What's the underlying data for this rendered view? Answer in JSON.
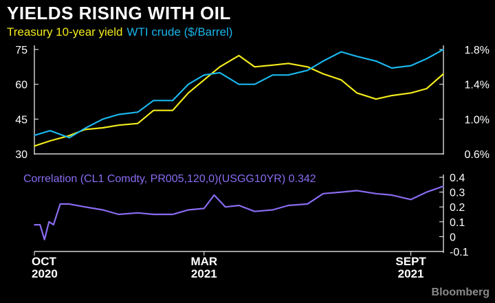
{
  "title": "YIELDS RISING WITH OIL",
  "legend": {
    "yield_label": "Treasury 10-year yield",
    "oil_label": "WTI crude ($/Barrel)"
  },
  "colors": {
    "yield": "#f3ec1c",
    "oil": "#1ab6ec",
    "correlation": "#8a6cf2",
    "axis": "#ffffff",
    "background": "#000000"
  },
  "source": "Bloomberg",
  "chart_data": [
    {
      "type": "line",
      "title": "",
      "x_axis": {
        "ticks": [
          {
            "month": "OCT",
            "year": "2020",
            "date": "2020-10-01"
          },
          {
            "month": "MAR",
            "year": "2021",
            "date": "2021-03-01"
          },
          {
            "month": "SEPT",
            "year": "2021",
            "date": "2021-09-01"
          }
        ],
        "range": [
          "2020-10-01",
          "2021-09-30"
        ]
      },
      "y_left": {
        "ticks": [
          "30",
          "45",
          "60",
          "75"
        ],
        "range": [
          30,
          75
        ]
      },
      "y_right": {
        "ticks": [
          "0.6%",
          "1.0%",
          "1.4%",
          "1.8%"
        ],
        "range": [
          0.6,
          1.8
        ]
      },
      "grid": false,
      "series": [
        {
          "name": "Treasury 10-year yield",
          "axis": "right",
          "x": [
            "2020-10-01",
            "2020-10-15",
            "2020-11-01",
            "2020-11-15",
            "2020-12-01",
            "2020-12-15",
            "2021-01-01",
            "2021-01-15",
            "2021-02-01",
            "2021-02-15",
            "2021-03-01",
            "2021-03-15",
            "2021-04-01",
            "2021-04-15",
            "2021-05-01",
            "2021-05-15",
            "2021-06-01",
            "2021-06-15",
            "2021-07-01",
            "2021-07-15",
            "2021-08-01",
            "2021-08-15",
            "2021-09-01",
            "2021-09-15",
            "2021-09-30"
          ],
          "values": [
            0.69,
            0.75,
            0.81,
            0.88,
            0.9,
            0.93,
            0.95,
            1.1,
            1.1,
            1.3,
            1.45,
            1.6,
            1.73,
            1.6,
            1.62,
            1.64,
            1.6,
            1.52,
            1.45,
            1.3,
            1.23,
            1.27,
            1.3,
            1.35,
            1.52
          ]
        },
        {
          "name": "WTI crude ($/Barrel)",
          "axis": "left",
          "x": [
            "2020-10-01",
            "2020-10-15",
            "2020-11-01",
            "2020-11-15",
            "2020-12-01",
            "2020-12-15",
            "2021-01-01",
            "2021-01-15",
            "2021-02-01",
            "2021-02-15",
            "2021-03-01",
            "2021-03-15",
            "2021-04-01",
            "2021-04-15",
            "2021-05-01",
            "2021-05-15",
            "2021-06-01",
            "2021-06-15",
            "2021-07-01",
            "2021-07-15",
            "2021-08-01",
            "2021-08-15",
            "2021-09-01",
            "2021-09-15",
            "2021-09-30"
          ],
          "values": [
            38,
            40,
            37,
            41,
            45,
            47,
            48,
            53,
            53,
            60,
            64,
            65,
            60,
            60,
            64,
            64,
            66,
            70,
            74,
            72,
            70,
            67,
            68,
            71,
            75
          ]
        }
      ]
    },
    {
      "type": "line",
      "title": "Correlation (CL1 Comdty, PR005,120,0)(USGG10YR) 0.342",
      "y_right": {
        "ticks": [
          "0.4",
          "0.3",
          "0.2",
          "0.1",
          "0",
          "-0.1"
        ],
        "range": [
          -0.1,
          0.4
        ]
      },
      "grid": false,
      "series": [
        {
          "x": [
            "2020-10-01",
            "2020-10-06",
            "2020-10-10",
            "2020-10-14",
            "2020-10-18",
            "2020-10-24",
            "2020-11-01",
            "2020-11-15",
            "2020-12-01",
            "2020-12-15",
            "2021-01-01",
            "2021-01-15",
            "2021-02-01",
            "2021-02-15",
            "2021-03-01",
            "2021-03-10",
            "2021-03-20",
            "2021-04-01",
            "2021-04-15",
            "2021-05-01",
            "2021-05-15",
            "2021-06-01",
            "2021-06-15",
            "2021-07-01",
            "2021-07-15",
            "2021-08-01",
            "2021-08-15",
            "2021-09-01",
            "2021-09-15",
            "2021-09-30"
          ],
          "values": [
            0.08,
            0.08,
            -0.02,
            0.1,
            0.08,
            0.22,
            0.22,
            0.2,
            0.18,
            0.15,
            0.16,
            0.15,
            0.15,
            0.18,
            0.19,
            0.28,
            0.2,
            0.21,
            0.17,
            0.18,
            0.21,
            0.22,
            0.29,
            0.3,
            0.31,
            0.29,
            0.28,
            0.25,
            0.3,
            0.34
          ]
        }
      ]
    }
  ]
}
